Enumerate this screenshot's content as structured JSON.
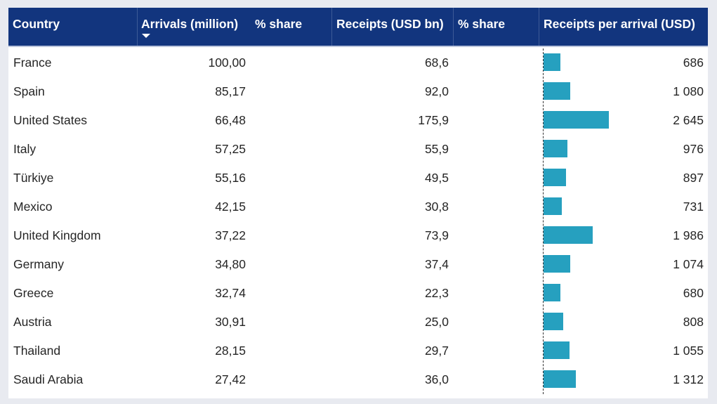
{
  "table": {
    "headers": {
      "country": "Country",
      "arrivals": "Arrivals (million)",
      "arrivals_share": "% share",
      "receipts": "Receipts (USD bn)",
      "receipts_share": "% share",
      "receipts_per_arrival": "Receipts per arrival (USD)"
    },
    "sort": {
      "column": "arrivals",
      "direction": "descending"
    },
    "rows": [
      {
        "country": "France",
        "arrivals": "100,00",
        "receipts": "68,6",
        "rpa": "686",
        "rpa_value": 686
      },
      {
        "country": "Spain",
        "arrivals": "85,17",
        "receipts": "92,0",
        "rpa": "1 080",
        "rpa_value": 1080
      },
      {
        "country": "United States",
        "arrivals": "66,48",
        "receipts": "175,9",
        "rpa": "2 645",
        "rpa_value": 2645
      },
      {
        "country": "Italy",
        "arrivals": "57,25",
        "receipts": "55,9",
        "rpa": "976",
        "rpa_value": 976
      },
      {
        "country": "Türkiye",
        "arrivals": "55,16",
        "receipts": "49,5",
        "rpa": "897",
        "rpa_value": 897
      },
      {
        "country": "Mexico",
        "arrivals": "42,15",
        "receipts": "30,8",
        "rpa": "731",
        "rpa_value": 731
      },
      {
        "country": "United Kingdom",
        "arrivals": "37,22",
        "receipts": "73,9",
        "rpa": "1 986",
        "rpa_value": 1986
      },
      {
        "country": "Germany",
        "arrivals": "34,80",
        "receipts": "37,4",
        "rpa": "1 074",
        "rpa_value": 1074
      },
      {
        "country": "Greece",
        "arrivals": "32,74",
        "receipts": "22,3",
        "rpa": "680",
        "rpa_value": 680
      },
      {
        "country": "Austria",
        "arrivals": "30,91",
        "receipts": "25,0",
        "rpa": "808",
        "rpa_value": 808
      },
      {
        "country": "Thailand",
        "arrivals": "28,15",
        "receipts": "29,7",
        "rpa": "1 055",
        "rpa_value": 1055
      },
      {
        "country": "Saudi Arabia",
        "arrivals": "27,42",
        "receipts": "36,0",
        "rpa": "1 312",
        "rpa_value": 1312
      }
    ]
  },
  "colors": {
    "header_bg": "#12357e",
    "header_text": "#ffffff",
    "bar": "#26a0bf"
  }
}
